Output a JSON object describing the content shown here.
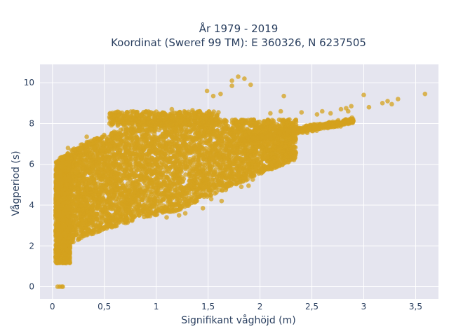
{
  "chart_data": {
    "type": "scatter",
    "title": "År 1979 - 2019",
    "subtitle": "Koordinat (Sweref 99 TM): E 360326, N 6237505",
    "xlabel": "Signifikant våghöjd (m)",
    "ylabel": "Vågperiod (s)",
    "xlim": [
      -0.12,
      3.72
    ],
    "ylim": [
      -0.6,
      10.9
    ],
    "x_ticks": [
      0,
      0.5,
      1,
      1.5,
      2,
      2.5,
      3,
      3.5
    ],
    "x_tick_labels": [
      "0",
      "0,5",
      "1",
      "1,5",
      "2",
      "2,5",
      "3",
      "3,5"
    ],
    "y_ticks": [
      0,
      2,
      4,
      6,
      8,
      10
    ],
    "y_tick_labels": [
      "0",
      "2",
      "4",
      "6",
      "8",
      "10"
    ],
    "grid": true,
    "background": "#e5e5ef",
    "marker_color": "#d4a11e",
    "marker_opacity": 0.75,
    "outlier_points": [
      {
        "x": 0.05,
        "y": 0.0
      },
      {
        "x": 0.07,
        "y": 0.0
      },
      {
        "x": 0.09,
        "y": 0.0
      },
      {
        "x": 0.1,
        "y": 0.0
      },
      {
        "x": 0.33,
        "y": 7.35
      },
      {
        "x": 0.15,
        "y": 6.8
      },
      {
        "x": 1.49,
        "y": 9.6
      },
      {
        "x": 1.55,
        "y": 9.35
      },
      {
        "x": 1.62,
        "y": 9.45
      },
      {
        "x": 1.73,
        "y": 9.85
      },
      {
        "x": 1.79,
        "y": 10.3
      },
      {
        "x": 1.85,
        "y": 10.2
      },
      {
        "x": 1.91,
        "y": 9.9
      },
      {
        "x": 1.73,
        "y": 10.1
      },
      {
        "x": 2.23,
        "y": 9.35
      },
      {
        "x": 2.88,
        "y": 8.85
      },
      {
        "x": 3.0,
        "y": 9.4
      },
      {
        "x": 3.05,
        "y": 8.8
      },
      {
        "x": 3.18,
        "y": 9.0
      },
      {
        "x": 3.23,
        "y": 9.1
      },
      {
        "x": 3.27,
        "y": 8.95
      },
      {
        "x": 3.33,
        "y": 9.2
      },
      {
        "x": 3.59,
        "y": 9.45
      },
      {
        "x": 1.98,
        "y": 5.95
      },
      {
        "x": 1.75,
        "y": 5.55
      },
      {
        "x": 1.93,
        "y": 5.25
      },
      {
        "x": 1.89,
        "y": 4.95
      },
      {
        "x": 1.82,
        "y": 4.9
      },
      {
        "x": 1.67,
        "y": 4.75
      },
      {
        "x": 1.53,
        "y": 4.3
      },
      {
        "x": 1.45,
        "y": 3.85
      },
      {
        "x": 1.28,
        "y": 3.6
      },
      {
        "x": 1.22,
        "y": 3.5
      },
      {
        "x": 1.1,
        "y": 3.4
      },
      {
        "x": 1.63,
        "y": 4.2
      },
      {
        "x": 2.6,
        "y": 8.6
      },
      {
        "x": 2.68,
        "y": 8.5
      },
      {
        "x": 2.78,
        "y": 8.7
      },
      {
        "x": 2.83,
        "y": 8.75
      },
      {
        "x": 2.85,
        "y": 8.6
      },
      {
        "x": 2.55,
        "y": 8.45
      },
      {
        "x": 2.4,
        "y": 8.55
      },
      {
        "x": 2.2,
        "y": 8.6
      },
      {
        "x": 2.1,
        "y": 8.5
      },
      {
        "x": 0.55,
        "y": 8.0
      },
      {
        "x": 0.85,
        "y": 8.4
      },
      {
        "x": 0.95,
        "y": 8.55
      },
      {
        "x": 1.15,
        "y": 8.7
      },
      {
        "x": 1.35,
        "y": 8.65
      },
      {
        "x": 1.42,
        "y": 8.6
      },
      {
        "x": 1.6,
        "y": 8.55
      },
      {
        "x": 0.63,
        "y": 7.9
      },
      {
        "x": 0.25,
        "y": 6.35
      },
      {
        "x": 0.45,
        "y": 7.2
      }
    ],
    "density_regions": [
      {
        "x_range": [
          0.03,
          0.15
        ],
        "y_min_at_x": 1.1,
        "y_max": 6.3,
        "density": 1.0
      },
      {
        "x_range": [
          0.15,
          0.5
        ],
        "trend": "lower band rising from 1.2 to 2.8",
        "density": 1.0
      },
      {
        "x_range": [
          0.5,
          1.2
        ],
        "trend": "main mass from 3.0 to 7.5",
        "density": 1.0
      },
      {
        "x_range": [
          1.2,
          2.0
        ],
        "trend": "band from 5.0 to 8.0",
        "density": 0.9
      },
      {
        "x_range": [
          2.0,
          2.8
        ],
        "trend": "narrow band 7.3 to 8.5",
        "density": 0.7
      },
      {
        "x_range": [
          0.5,
          1.6
        ],
        "trend": "row near 8.0 to 8.6",
        "density": 0.6
      }
    ]
  }
}
